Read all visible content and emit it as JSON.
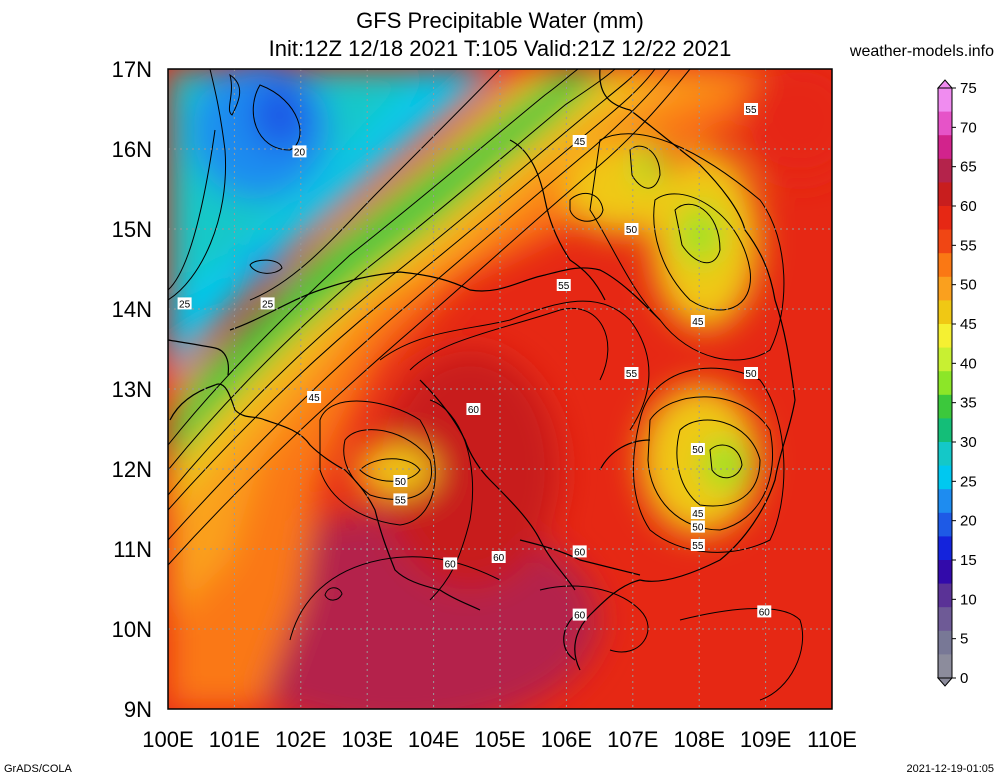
{
  "header": {
    "title": "GFS Precipitable Water (mm)",
    "subtitle": "Init:12Z 12/18 2021 T:105 Valid:21Z 12/22 2021",
    "site": "weather-models.info"
  },
  "map": {
    "lat_labels": [
      "17N",
      "16N",
      "15N",
      "14N",
      "13N",
      "12N",
      "11N",
      "10N",
      "9N"
    ],
    "lon_labels": [
      "100E",
      "101E",
      "102E",
      "103E",
      "104E",
      "105E",
      "106E",
      "107E",
      "108E",
      "109E",
      "110E"
    ],
    "gridlines": true,
    "contour_labels": [
      {
        "text": "20",
        "lon": 101.98,
        "lat": 15.97
      },
      {
        "text": "25",
        "lon": 100.25,
        "lat": 14.07
      },
      {
        "text": "25",
        "lon": 101.5,
        "lat": 14.07
      },
      {
        "text": "45",
        "lon": 102.2,
        "lat": 12.9
      },
      {
        "text": "45",
        "lon": 106.2,
        "lat": 16.1
      },
      {
        "text": "50",
        "lon": 106.98,
        "lat": 15.0
      },
      {
        "text": "55",
        "lon": 105.96,
        "lat": 14.3
      },
      {
        "text": "45",
        "lon": 107.98,
        "lat": 13.85
      },
      {
        "text": "55",
        "lon": 108.78,
        "lat": 16.5
      },
      {
        "text": "55",
        "lon": 106.98,
        "lat": 13.2
      },
      {
        "text": "50",
        "lon": 108.78,
        "lat": 13.2
      },
      {
        "text": "60",
        "lon": 104.6,
        "lat": 12.75
      },
      {
        "text": "50",
        "lon": 107.98,
        "lat": 12.25
      },
      {
        "text": "50",
        "lon": 103.5,
        "lat": 11.85
      },
      {
        "text": "55",
        "lon": 103.5,
        "lat": 11.62
      },
      {
        "text": "45",
        "lon": 107.98,
        "lat": 11.45
      },
      {
        "text": "50",
        "lon": 107.98,
        "lat": 11.28
      },
      {
        "text": "55",
        "lon": 107.98,
        "lat": 11.05
      },
      {
        "text": "60",
        "lon": 104.25,
        "lat": 10.82
      },
      {
        "text": "60",
        "lon": 104.98,
        "lat": 10.9
      },
      {
        "text": "60",
        "lon": 106.2,
        "lat": 10.97
      },
      {
        "text": "60",
        "lon": 106.2,
        "lat": 10.18
      },
      {
        "text": "60",
        "lon": 108.98,
        "lat": 10.22
      }
    ]
  },
  "colorbar": {
    "labels": [
      "75",
      "70",
      "65",
      "60",
      "55",
      "50",
      "45",
      "40",
      "35",
      "30",
      "25",
      "20",
      "15",
      "10",
      "5",
      "0"
    ],
    "colors": [
      "#f08cf0",
      "#e653c8",
      "#d2238c",
      "#b4234b",
      "#c81e1e",
      "#e62814",
      "#f04614",
      "#fa7814",
      "#faa01e",
      "#f0c814",
      "#f5f032",
      "#c8f032",
      "#8ce628",
      "#3cc83c",
      "#14be78",
      "#14c8c8",
      "#00c8f0",
      "#1e8cf0",
      "#1e5ae6",
      "#1423dc",
      "#320aaa",
      "#5a3296",
      "#6e5a96",
      "#787896",
      "#8c8c9c"
    ]
  },
  "footer": {
    "left": "GrADS/COLA",
    "right": "2021-12-19-01:05"
  }
}
